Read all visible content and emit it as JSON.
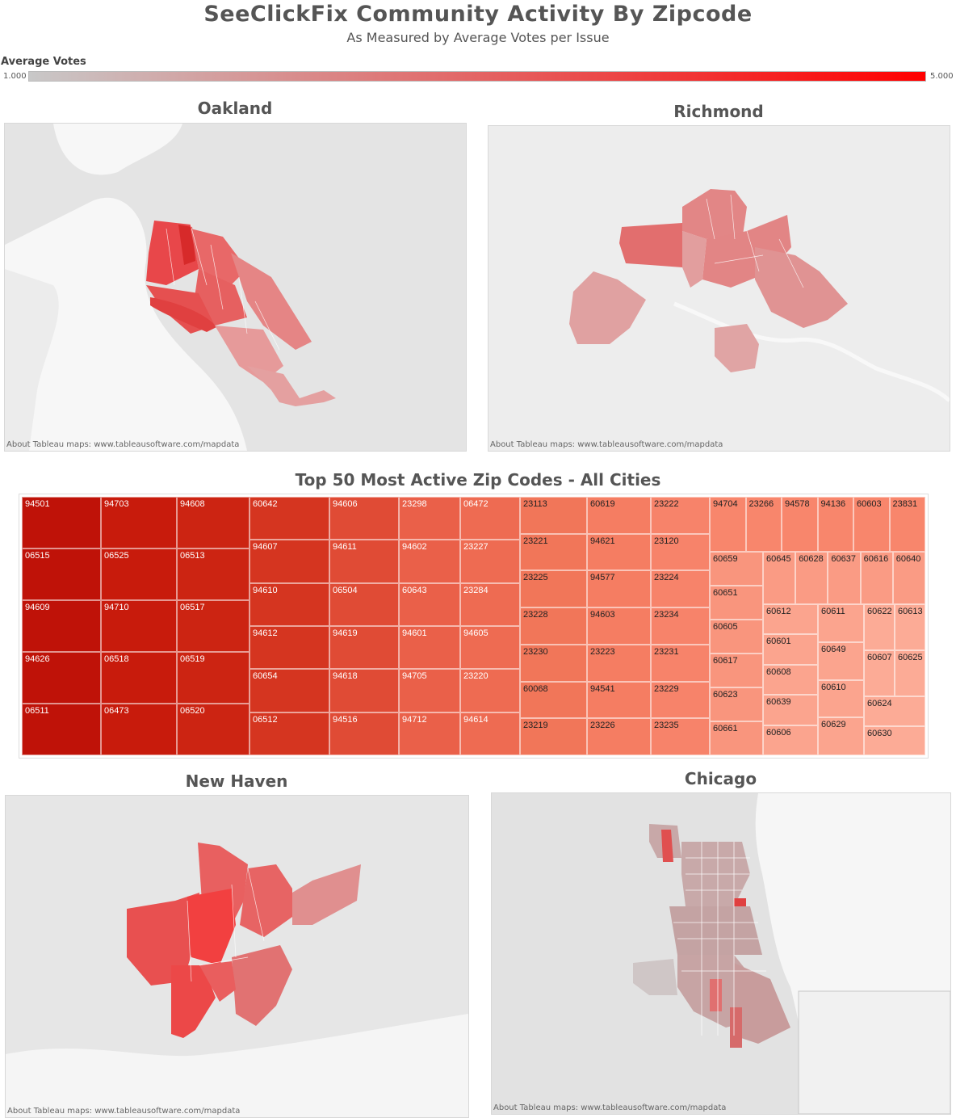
{
  "header": {
    "title": "SeeClickFix Community Activity By Zipcode",
    "subtitle": "As Measured by Average Votes per Issue"
  },
  "legend": {
    "title": "Average Votes",
    "min_label": "1.000",
    "max_label": "5.000",
    "color_low": "#c8c8c8",
    "color_high": "#ff0000"
  },
  "maps": {
    "oakland": {
      "title": "Oakland",
      "credit": "About Tableau maps: www.tableausoftware.com/mapdata"
    },
    "richmond": {
      "title": "Richmond",
      "credit": "About Tableau maps: www.tableausoftware.com/mapdata"
    },
    "new_haven": {
      "title": "New Haven",
      "credit": "About Tableau maps: www.tableausoftware.com/mapdata"
    },
    "chicago": {
      "title": "Chicago",
      "credit": "About Tableau maps: www.tableausoftware.com/mapdata"
    }
  },
  "treemap": {
    "title": "Top 50 Most Active Zip Codes - All Cities",
    "columns": [
      [
        "94501",
        "06515",
        "94609",
        "94626",
        "06511"
      ],
      [
        "94703",
        "06525",
        "94710",
        "06518",
        "06473"
      ],
      [
        "94608",
        "06513",
        "06517",
        "06519",
        "06520"
      ],
      [
        "60642",
        "94607",
        "94610",
        "94612",
        "60654",
        "06512"
      ],
      [
        "94606",
        "94611",
        "06504",
        "94619",
        "94618",
        "94516"
      ],
      [
        "23298",
        "94602",
        "60643",
        "94601",
        "94705",
        "94712"
      ],
      [
        "06472",
        "23227",
        "23284",
        "94605",
        "23220",
        "94614"
      ],
      [
        "23113",
        "23221",
        "23225",
        "23228",
        "23230",
        "60068",
        "23219"
      ],
      [
        "60619",
        "94621",
        "94577",
        "94603",
        "23223",
        "94541",
        "23226"
      ],
      [
        "23222",
        "23120",
        "23224",
        "23234",
        "23231",
        "23229",
        "23235"
      ]
    ],
    "right_block": {
      "top_row": [
        "94704",
        "23266",
        "94578",
        "94136",
        "60603",
        "23831"
      ],
      "left_column": [
        "60659",
        "60651",
        "60605",
        "60617",
        "60623",
        "60661"
      ],
      "row_b": [
        "60645",
        "60628",
        "60637",
        "60616",
        "60640"
      ],
      "col_c": [
        "60612",
        "60601",
        "60608",
        "60639",
        "60606"
      ],
      "col_d": [
        "60611",
        "60649",
        "60610",
        "60629"
      ],
      "col_e": [
        "60622",
        "60613",
        "60607",
        "60625",
        "60624",
        "60630"
      ]
    }
  }
}
